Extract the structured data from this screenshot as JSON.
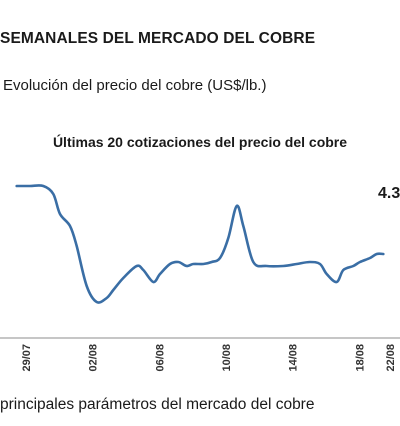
{
  "header": {
    "title": "SEMANALES DEL MERCADO DEL COBRE",
    "subtitle": "Evolución del precio del cobre (US$/lb.)"
  },
  "footer": {
    "text": "principales parámetros del mercado del cobre"
  },
  "chart_data": {
    "type": "line",
    "title": "Últimas 20 cotizaciones del precio del cobre",
    "x_tick_labels": [
      "29/07",
      "02/08",
      "06/08",
      "10/08",
      "14/08",
      "18/08",
      "22/08"
    ],
    "series": [
      {
        "color": "#3a6ea5",
        "x": [
          0,
          0.8,
          1.6,
          2.2,
          2.6,
          3.2,
          3.6,
          4.2,
          4.8,
          5.4,
          5.8,
          6.4,
          7.2,
          7.6,
          8.2,
          8.6,
          9.2,
          9.7,
          10.2,
          10.6,
          11.2,
          11.7,
          12.2,
          12.7,
          13.2,
          13.6,
          14.2,
          15,
          16,
          16.8,
          17.6,
          18.2,
          18.6,
          19.2,
          19.6,
          20.2,
          20.6,
          21.2,
          21.6,
          22.0
        ],
        "values": [
          4.58,
          4.58,
          4.58,
          4.56,
          4.51,
          4.48,
          4.43,
          4.33,
          4.29,
          4.3,
          4.32,
          4.35,
          4.38,
          4.37,
          4.34,
          4.36,
          4.385,
          4.39,
          4.38,
          4.385,
          4.385,
          4.39,
          4.4,
          4.45,
          4.53,
          4.48,
          4.39,
          4.38,
          4.38,
          4.385,
          4.39,
          4.385,
          4.36,
          4.34,
          4.37,
          4.38,
          4.39,
          4.4,
          4.41,
          4.41
        ]
      }
    ],
    "annotation": "4.3",
    "xlim": [
      -1,
      23
    ],
    "ylim": [
      4.2,
      4.65
    ],
    "grid": false,
    "legend": "none"
  },
  "colors": {
    "line": "#3a6ea5",
    "axis": "#8c8c8c"
  }
}
